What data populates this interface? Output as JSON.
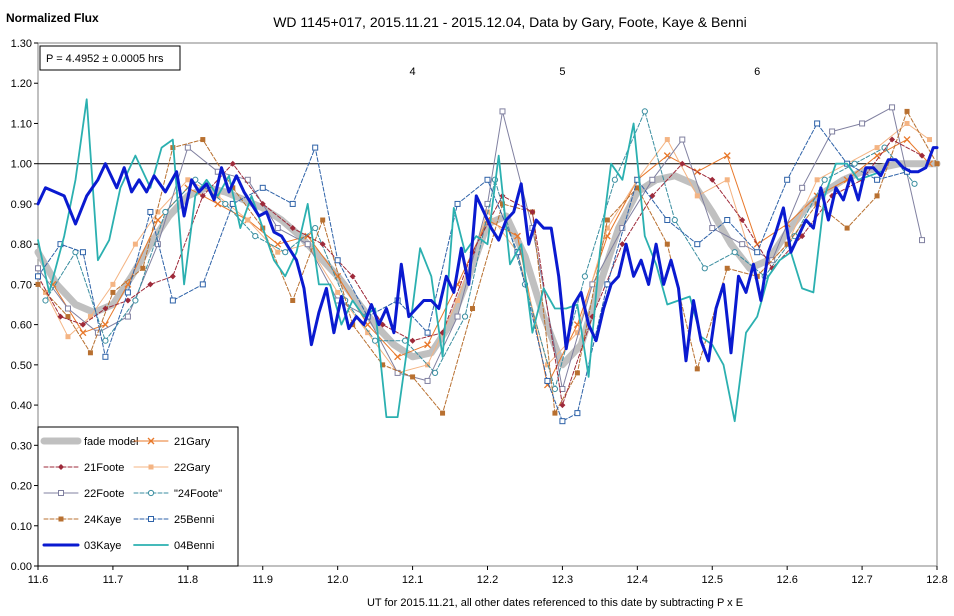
{
  "chart_data": {
    "type": "line",
    "title": "WD 1145+017, 2015.11.21 - 2015.12.04, Data by Gary, Foote, Kaye & Benni",
    "ylabel": "Normalized Flux",
    "xlabel": "UT for 2015.11.21, all other dates referenced to this date by subtracting P x E",
    "period_label": "P = 4.4952 ± 0.0005 hrs",
    "xlim": [
      11.6,
      12.8
    ],
    "ylim": [
      0.0,
      1.3
    ],
    "x_ticks": [
      "11.6",
      "11.7",
      "11.8",
      "11.9",
      "12.0",
      "12.1",
      "12.2",
      "12.3",
      "12.4",
      "12.5",
      "12.6",
      "12.7",
      "12.8"
    ],
    "y_ticks": [
      "0.00",
      "0.10",
      "0.20",
      "0.30",
      "0.40",
      "0.50",
      "0.60",
      "0.70",
      "0.80",
      "0.90",
      "1.00",
      "1.10",
      "1.20",
      "1.30"
    ],
    "reference_line": 1.0,
    "grid": false,
    "legend_position": "bottom-left",
    "annotations": [
      {
        "text": "4",
        "x": 12.1,
        "y": 1.23
      },
      {
        "text": "5",
        "x": 12.3,
        "y": 1.23
      },
      {
        "text": "6",
        "x": 12.56,
        "y": 1.23
      }
    ],
    "series": [
      {
        "name": "fade model",
        "color": "#c0c0c0",
        "style": "thick",
        "x": [
          11.6,
          11.625,
          11.65,
          11.675,
          11.7,
          11.725,
          11.75,
          11.775,
          11.8,
          11.825,
          11.85,
          11.875,
          11.9,
          11.925,
          11.95,
          11.975,
          12.0,
          12.025,
          12.05,
          12.075,
          12.1,
          12.125,
          12.15,
          12.175,
          12.2,
          12.225,
          12.25,
          12.275,
          12.3,
          12.325,
          12.35,
          12.375,
          12.4,
          12.425,
          12.45,
          12.475,
          12.5,
          12.525,
          12.55,
          12.575,
          12.6,
          12.625,
          12.65,
          12.675,
          12.7,
          12.725,
          12.75,
          12.775,
          12.8
        ],
        "y": [
          0.78,
          0.7,
          0.65,
          0.63,
          0.65,
          0.72,
          0.8,
          0.87,
          0.92,
          0.94,
          0.93,
          0.91,
          0.89,
          0.86,
          0.82,
          0.77,
          0.72,
          0.66,
          0.6,
          0.55,
          0.52,
          0.53,
          0.6,
          0.72,
          0.85,
          0.87,
          0.77,
          0.62,
          0.5,
          0.55,
          0.7,
          0.84,
          0.93,
          0.96,
          0.97,
          0.95,
          0.88,
          0.8,
          0.74,
          0.76,
          0.83,
          0.89,
          0.93,
          0.96,
          0.98,
          0.99,
          1.0,
          1.0,
          1.0
        ]
      },
      {
        "name": "21Gary",
        "color": "#e8782a",
        "marker": "x",
        "style": "solid-thin",
        "x": [
          11.62,
          11.66,
          11.69,
          11.72,
          11.76,
          11.8,
          11.84,
          11.88,
          11.92,
          11.96,
          12.0,
          12.04,
          12.08,
          12.12,
          12.16,
          12.2,
          12.24,
          12.28,
          12.32,
          12.36,
          12.4,
          12.44,
          12.48,
          12.52,
          12.56,
          12.6,
          12.64,
          12.68,
          12.72,
          12.76,
          12.79
        ],
        "y": [
          0.7,
          0.58,
          0.6,
          0.7,
          0.86,
          0.94,
          0.9,
          0.86,
          0.8,
          0.82,
          0.72,
          0.6,
          0.52,
          0.55,
          0.7,
          0.86,
          0.82,
          0.45,
          0.6,
          0.82,
          0.96,
          1.02,
          0.98,
          1.02,
          0.8,
          0.85,
          0.92,
          0.96,
          1.02,
          1.06,
          1.0
        ]
      },
      {
        "name": "21Foote",
        "color": "#9e2a3a",
        "marker": "diamond",
        "style": "dashed",
        "x": [
          11.6,
          11.63,
          11.66,
          11.69,
          11.72,
          11.75,
          11.78,
          11.82,
          11.86,
          11.9,
          11.94,
          11.98,
          12.02,
          12.06,
          12.1,
          12.14,
          12.18,
          12.22,
          12.26,
          12.3,
          12.34,
          12.38,
          12.42,
          12.46,
          12.5,
          12.54,
          12.58,
          12.62,
          12.66,
          12.7,
          12.74,
          12.78
        ],
        "y": [
          0.72,
          0.62,
          0.6,
          0.64,
          0.66,
          0.7,
          0.72,
          0.92,
          1.0,
          0.9,
          0.84,
          0.8,
          0.72,
          0.6,
          0.56,
          0.58,
          0.78,
          0.92,
          0.88,
          0.4,
          0.62,
          0.8,
          0.92,
          1.0,
          0.96,
          0.86,
          0.74,
          0.82,
          0.92,
          0.96,
          1.06,
          1.02
        ]
      },
      {
        "name": "22Gary",
        "color": "#f4b483",
        "marker": "square",
        "style": "solid-thin",
        "x": [
          11.61,
          11.64,
          11.67,
          11.7,
          11.73,
          11.76,
          11.8,
          11.84,
          11.88,
          11.92,
          11.96,
          12.0,
          12.04,
          12.08,
          12.12,
          12.16,
          12.2,
          12.24,
          12.28,
          12.32,
          12.36,
          12.4,
          12.44,
          12.48,
          12.52,
          12.56,
          12.6,
          12.64,
          12.68,
          12.72,
          12.76,
          12.79
        ],
        "y": [
          0.68,
          0.57,
          0.62,
          0.7,
          0.8,
          0.88,
          0.96,
          0.92,
          0.86,
          0.78,
          0.8,
          0.68,
          0.58,
          0.48,
          0.5,
          0.66,
          0.88,
          0.78,
          0.5,
          0.58,
          0.84,
          0.96,
          1.06,
          0.92,
          0.96,
          0.72,
          0.8,
          0.96,
          1.0,
          1.04,
          1.1,
          1.06
        ]
      },
      {
        "name": "22Foote",
        "color": "#8080a0",
        "marker": "square-open",
        "style": "solid-thin",
        "x": [
          11.6,
          11.64,
          11.68,
          11.72,
          11.76,
          11.8,
          11.84,
          11.88,
          11.92,
          11.96,
          12.0,
          12.04,
          12.08,
          12.12,
          12.16,
          12.2,
          12.22,
          12.26,
          12.3,
          12.34,
          12.38,
          12.42,
          12.46,
          12.5,
          12.54,
          12.58,
          12.62,
          12.66,
          12.7,
          12.74,
          12.78
        ],
        "y": [
          0.74,
          0.64,
          0.58,
          0.62,
          0.8,
          1.04,
          0.98,
          0.96,
          0.84,
          0.8,
          0.66,
          0.62,
          0.48,
          0.46,
          0.62,
          0.9,
          1.13,
          0.84,
          0.44,
          0.7,
          0.84,
          0.96,
          1.06,
          0.84,
          0.8,
          0.76,
          0.94,
          1.08,
          1.1,
          1.14,
          0.81
        ]
      },
      {
        "name": "\"24Foote\"",
        "color": "#3a8ea0",
        "marker": "circle-open",
        "style": "dashed",
        "x": [
          11.61,
          11.65,
          11.69,
          11.73,
          11.77,
          11.81,
          11.85,
          11.89,
          11.93,
          11.97,
          12.01,
          12.05,
          12.09,
          12.13,
          12.17,
          12.21,
          12.25,
          12.29,
          12.33,
          12.37,
          12.41,
          12.45,
          12.49,
          12.53,
          12.57,
          12.61,
          12.65,
          12.69,
          12.73,
          12.77
        ],
        "y": [
          0.66,
          0.78,
          0.56,
          0.66,
          0.88,
          0.96,
          0.9,
          0.82,
          0.78,
          0.84,
          0.66,
          0.56,
          0.56,
          0.48,
          0.62,
          0.96,
          0.7,
          0.44,
          0.72,
          0.96,
          1.13,
          0.86,
          0.74,
          0.78,
          0.72,
          0.82,
          0.96,
          1.0,
          1.04,
          0.95
        ]
      },
      {
        "name": "24Kaye",
        "color": "#b87030",
        "marker": "square",
        "style": "dashed",
        "x": [
          11.6,
          11.64,
          11.67,
          11.7,
          11.74,
          11.78,
          11.82,
          11.86,
          11.9,
          11.94,
          11.98,
          12.02,
          12.06,
          12.1,
          12.14,
          12.18,
          12.22,
          12.26,
          12.29,
          12.32,
          12.36,
          12.4,
          12.44,
          12.48,
          12.52,
          12.56,
          12.6,
          12.64,
          12.68,
          12.72,
          12.76,
          12.8
        ],
        "y": [
          0.7,
          0.62,
          0.53,
          0.68,
          0.74,
          1.04,
          1.06,
          0.94,
          0.84,
          0.66,
          0.86,
          0.6,
          0.5,
          0.47,
          0.38,
          0.64,
          0.9,
          0.88,
          0.38,
          0.48,
          0.86,
          0.94,
          0.8,
          0.49,
          0.74,
          0.72,
          0.8,
          0.9,
          0.84,
          0.92,
          1.13,
          1.0
        ]
      },
      {
        "name": "25Benni",
        "color": "#2e62a8",
        "marker": "square-open",
        "style": "dashed",
        "x": [
          11.6,
          11.63,
          11.66,
          11.69,
          11.72,
          11.75,
          11.78,
          11.82,
          11.86,
          11.9,
          11.94,
          11.97,
          12.0,
          12.04,
          12.08,
          12.12,
          12.16,
          12.2,
          12.24,
          12.28,
          12.3,
          12.32,
          12.36,
          12.4,
          12.44,
          12.48,
          12.52,
          12.56,
          12.6,
          12.64,
          12.68,
          12.72,
          12.76
        ],
        "y": [
          0.72,
          0.8,
          0.78,
          0.52,
          0.68,
          0.88,
          0.66,
          0.7,
          0.9,
          0.94,
          0.9,
          1.04,
          0.76,
          0.62,
          0.66,
          0.58,
          0.9,
          0.96,
          0.78,
          0.46,
          0.36,
          0.38,
          0.7,
          0.96,
          0.86,
          0.8,
          0.86,
          0.78,
          0.96,
          1.1,
          1.0,
          0.96,
          0.98
        ]
      },
      {
        "name": "03Kaye",
        "color": "#0a1ad0",
        "style": "thick",
        "x": [
          11.6,
          11.61,
          11.635,
          11.65,
          11.665,
          11.68,
          11.69,
          11.705,
          11.715,
          11.725,
          11.735,
          11.745,
          11.755,
          11.77,
          11.785,
          11.795,
          11.805,
          11.815,
          11.825,
          11.835,
          11.845,
          11.855,
          11.865,
          11.875,
          11.885,
          11.895,
          11.905,
          11.915,
          11.925,
          11.935,
          11.945,
          11.955,
          11.965,
          11.975,
          11.985,
          11.995,
          12.005,
          12.015,
          12.025,
          12.035,
          12.045,
          12.055,
          12.065,
          12.075,
          12.085,
          12.095,
          12.105,
          12.115,
          12.125,
          12.135,
          12.145,
          12.155,
          12.165,
          12.175,
          12.185,
          12.195,
          12.205,
          12.215,
          12.225,
          12.235,
          12.245,
          12.255,
          12.265,
          12.275,
          12.285,
          12.295,
          12.305,
          12.315,
          12.325,
          12.335,
          12.345,
          12.355,
          12.365,
          12.375,
          12.385,
          12.395,
          12.405,
          12.415,
          12.425,
          12.435,
          12.445,
          12.455,
          12.465,
          12.475,
          12.485,
          12.495,
          12.505,
          12.515,
          12.525,
          12.535,
          12.545,
          12.555,
          12.565,
          12.575,
          12.585,
          12.595,
          12.605,
          12.615,
          12.625,
          12.635,
          12.645,
          12.655,
          12.665,
          12.675,
          12.685,
          12.695,
          12.705,
          12.715,
          12.725,
          12.735,
          12.745,
          12.755,
          12.765,
          12.775,
          12.785,
          12.795,
          12.8
        ],
        "y": [
          0.9,
          0.94,
          0.92,
          0.85,
          0.92,
          0.96,
          1.0,
          0.94,
          0.99,
          0.93,
          0.96,
          0.93,
          0.97,
          0.93,
          0.98,
          0.87,
          0.96,
          0.93,
          0.95,
          0.91,
          0.99,
          0.93,
          0.97,
          0.93,
          0.9,
          0.87,
          0.88,
          0.83,
          0.82,
          0.79,
          0.76,
          0.69,
          0.55,
          0.63,
          0.69,
          0.58,
          0.67,
          0.59,
          0.62,
          0.6,
          0.65,
          0.6,
          0.64,
          0.58,
          0.75,
          0.62,
          0.64,
          0.66,
          0.66,
          0.64,
          0.72,
          0.68,
          0.79,
          0.7,
          0.92,
          0.88,
          0.84,
          0.81,
          0.86,
          0.88,
          0.95,
          0.8,
          0.86,
          0.84,
          0.84,
          0.72,
          0.54,
          0.65,
          0.68,
          0.6,
          0.56,
          0.64,
          0.7,
          0.72,
          0.8,
          0.72,
          0.76,
          0.7,
          0.8,
          0.7,
          0.76,
          0.69,
          0.51,
          0.66,
          0.56,
          0.51,
          0.64,
          0.7,
          0.53,
          0.72,
          0.68,
          0.75,
          0.66,
          0.78,
          0.83,
          0.89,
          0.78,
          0.82,
          0.86,
          0.84,
          0.94,
          0.86,
          0.94,
          0.91,
          0.97,
          0.91,
          0.99,
          0.99,
          0.97,
          1.01,
          1.01,
          0.99,
          0.98,
          0.98,
          0.99,
          1.04,
          1.04
        ]
      },
      {
        "name": "04Benni",
        "color": "#2bb0b0",
        "style": "solid",
        "x": [
          11.6,
          11.615,
          11.635,
          11.65,
          11.665,
          11.68,
          11.695,
          11.71,
          11.73,
          11.75,
          11.765,
          11.78,
          11.795,
          11.81,
          11.825,
          11.84,
          11.855,
          11.87,
          11.885,
          11.9,
          11.915,
          11.93,
          11.945,
          11.96,
          11.975,
          11.99,
          12.005,
          12.02,
          12.035,
          12.05,
          12.065,
          12.08,
          12.095,
          12.11,
          12.125,
          12.14,
          12.155,
          12.17,
          12.185,
          12.2,
          12.215,
          12.23,
          12.245,
          12.26,
          12.275,
          12.29,
          12.305,
          12.32,
          12.335,
          12.35,
          12.365,
          12.38,
          12.395,
          12.41,
          12.425,
          12.44,
          12.455,
          12.47,
          12.485,
          12.5,
          12.515,
          12.53,
          12.545,
          12.56,
          12.575,
          12.59,
          12.605,
          12.62,
          12.635,
          12.65,
          12.665,
          12.68,
          12.695,
          12.71,
          12.725
        ],
        "y": [
          0.81,
          0.68,
          0.82,
          0.96,
          1.16,
          0.76,
          0.81,
          0.94,
          1.02,
          0.94,
          1.04,
          1.06,
          0.7,
          0.92,
          0.96,
          0.92,
          0.97,
          0.84,
          0.92,
          0.84,
          0.76,
          0.72,
          0.78,
          0.9,
          0.7,
          0.7,
          0.6,
          0.66,
          0.62,
          0.64,
          0.37,
          0.37,
          0.57,
          0.79,
          0.72,
          0.52,
          0.89,
          0.78,
          0.82,
          0.8,
          1.02,
          0.75,
          0.8,
          0.58,
          0.69,
          0.64,
          0.64,
          0.65,
          0.47,
          0.78,
          1.0,
          0.96,
          1.1,
          0.82,
          0.75,
          0.65,
          0.66,
          0.67,
          0.57,
          0.55,
          0.5,
          0.36,
          0.58,
          0.62,
          0.72,
          0.76,
          0.78,
          0.69,
          0.68,
          0.92,
          1.0,
          1.0,
          0.96,
          0.97,
          0.98
        ]
      }
    ]
  }
}
